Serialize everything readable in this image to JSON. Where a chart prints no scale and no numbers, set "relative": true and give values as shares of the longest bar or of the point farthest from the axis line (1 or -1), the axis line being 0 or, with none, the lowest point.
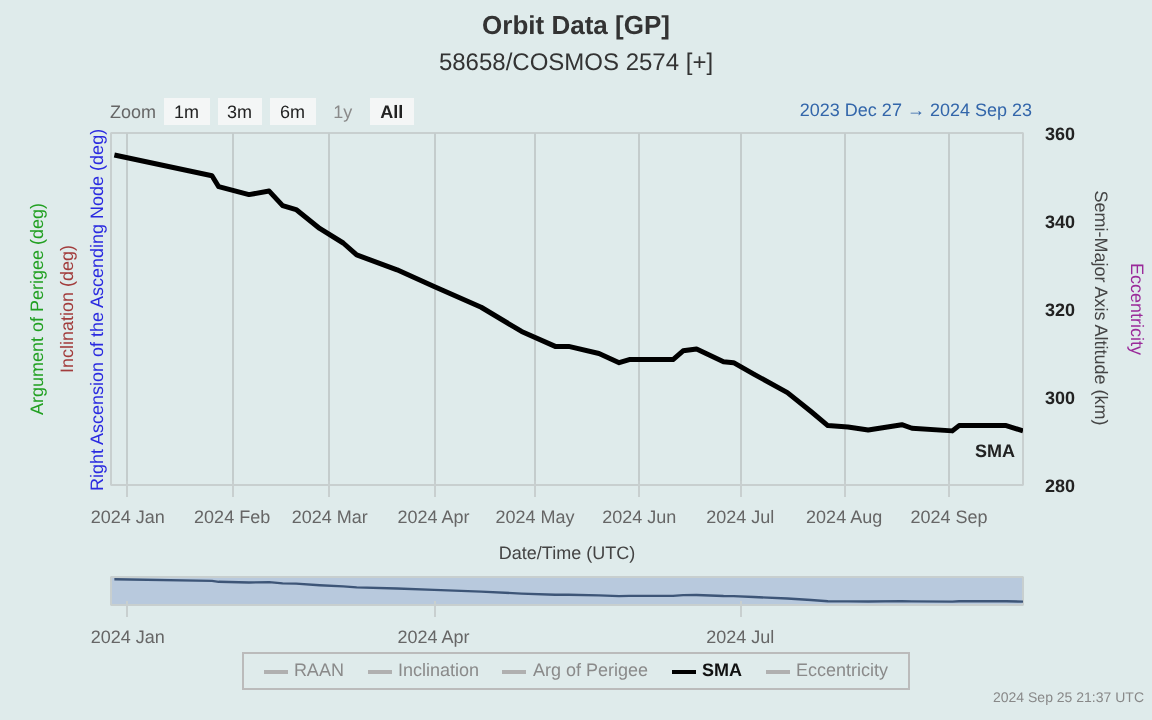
{
  "chart_data": [
    {
      "type": "line",
      "title": "Orbit Data [GP]",
      "subtitle": "58658/COSMOS 2574 [+]",
      "xlabel": "Date/Time (UTC)",
      "ylabel": "Semi-Major Axis Altitude (km)",
      "annotations": [
        "Argument of Perigee (deg)",
        "Inclination (deg)",
        "Right Ascension of the Ascending Node (deg)",
        "Eccentricity",
        "Zoom",
        "1m",
        "3m",
        "6m",
        "1y",
        "All",
        "2023 Dec 27 → 2024 Sep 23",
        "RAAN",
        "Inclination",
        "Arg of Perigee",
        "Eccentricity",
        "2024 Sep 25 21:37 UTC"
      ],
      "xlim": [
        "2023-12-27",
        "2024-09-23"
      ],
      "ylim": [
        280,
        360
      ],
      "yticks": [
        280,
        300,
        320,
        340,
        360
      ],
      "xticks": [
        {
          "value": "2024-01-01",
          "label": "2024 Jan"
        },
        {
          "value": "2024-02-01",
          "label": "2024 Feb"
        },
        {
          "value": "2024-03-01",
          "label": "2024 Mar"
        },
        {
          "value": "2024-04-01",
          "label": "2024 Apr"
        },
        {
          "value": "2024-05-01",
          "label": "2024 May"
        },
        {
          "value": "2024-06-01",
          "label": "2024 Jun"
        },
        {
          "value": "2024-07-01",
          "label": "2024 Jul"
        },
        {
          "value": "2024-08-01",
          "label": "2024 Aug"
        },
        {
          "value": "2024-09-01",
          "label": "2024 Sep"
        }
      ],
      "grid": "x",
      "legend": "bottom",
      "series": [
        {
          "name": "SMA",
          "color": "#000000",
          "x": [
            "2023-12-28",
            "2024-01-26",
            "2024-01-28",
            "2024-02-06",
            "2024-02-12",
            "2024-02-16",
            "2024-02-20",
            "2024-02-27",
            "2024-03-05",
            "2024-03-09",
            "2024-03-21",
            "2024-04-01",
            "2024-04-15",
            "2024-04-27",
            "2024-05-07",
            "2024-05-11",
            "2024-05-20",
            "2024-05-26",
            "2024-05-29",
            "2024-06-11",
            "2024-06-14",
            "2024-06-18",
            "2024-06-26",
            "2024-06-29",
            "2024-07-05",
            "2024-07-15",
            "2024-07-22",
            "2024-07-27",
            "2024-08-02",
            "2024-08-08",
            "2024-08-18",
            "2024-08-21",
            "2024-09-02",
            "2024-09-04",
            "2024-09-18",
            "2024-09-23"
          ],
          "values": [
            355,
            350.3,
            347.8,
            346,
            346.8,
            343.5,
            342.6,
            338.3,
            335,
            332.3,
            328.9,
            325.1,
            320.4,
            314.9,
            311.5,
            311.5,
            309.9,
            307.8,
            308.5,
            308.5,
            310.5,
            310.9,
            308,
            307.8,
            305.2,
            301,
            296.7,
            293.5,
            293.2,
            292.5,
            293.7,
            292.9,
            292.3,
            293.5,
            293.5,
            292.3
          ]
        }
      ]
    },
    {
      "type": "line",
      "xlim": [
        "2023-12-27",
        "2024-09-23"
      ],
      "relative": true,
      "tick_labels": "x",
      "xticks": [
        {
          "value": "2024-01-01",
          "label": "2024 Jan"
        },
        {
          "value": "2024-04-01",
          "label": "2024 Apr"
        },
        {
          "value": "2024-07-01",
          "label": "2024 Jul"
        }
      ],
      "series": [
        {
          "color": "#3d5577",
          "x": [
            "2023-12-28",
            "2024-01-26",
            "2024-01-28",
            "2024-02-06",
            "2024-02-12",
            "2024-02-16",
            "2024-02-20",
            "2024-02-27",
            "2024-03-05",
            "2024-03-09",
            "2024-03-21",
            "2024-04-01",
            "2024-04-15",
            "2024-04-27",
            "2024-05-07",
            "2024-05-11",
            "2024-05-20",
            "2024-05-26",
            "2024-05-29",
            "2024-06-11",
            "2024-06-14",
            "2024-06-18",
            "2024-06-26",
            "2024-06-29",
            "2024-07-05",
            "2024-07-15",
            "2024-07-22",
            "2024-07-27",
            "2024-08-02",
            "2024-08-08",
            "2024-08-18",
            "2024-08-21",
            "2024-09-02",
            "2024-09-04",
            "2024-09-18",
            "2024-09-23"
          ],
          "values": [
            1,
            0.925,
            0.885,
            0.856,
            0.869,
            0.817,
            0.802,
            0.734,
            0.681,
            0.638,
            0.584,
            0.523,
            0.448,
            0.36,
            0.306,
            0.306,
            0.281,
            0.247,
            0.258,
            0.258,
            0.29,
            0.297,
            0.25,
            0.247,
            0.206,
            0.139,
            0.07,
            0.019,
            0.014,
            0.003,
            0.022,
            0.01,
            0,
            0.019,
            0.019,
            0
          ]
        }
      ]
    }
  ]
}
